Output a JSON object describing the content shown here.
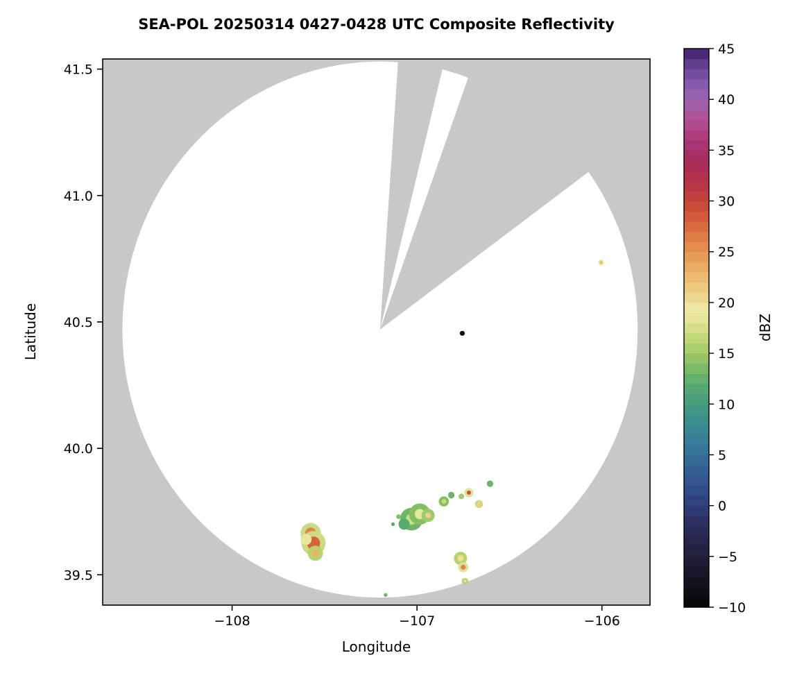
{
  "figure": {
    "title": "SEA-POL 20250314 0427-0428 UTC Composite Reflectivity",
    "xlabel": "Longitude",
    "ylabel": "Latitude",
    "colorbar_label": "dBZ"
  },
  "chart_data": {
    "type": "heatmap",
    "title": "SEA-POL 20250314 0427-0428 UTC Composite Reflectivity",
    "xlabel": "Longitude",
    "ylabel": "Latitude",
    "xlim": [
      -108.7,
      -105.74
    ],
    "ylim": [
      39.38,
      41.54
    ],
    "xticks": [
      -108,
      -107,
      -106
    ],
    "xtick_labels": [
      "−108",
      "−107",
      "−106"
    ],
    "yticks": [
      39.5,
      40.0,
      40.5,
      41.0,
      41.5
    ],
    "ytick_labels": [
      "39.5",
      "40.0",
      "40.5",
      "41.0",
      "41.5"
    ],
    "grid": false,
    "plot_background": "#ffffff",
    "outside_scan_color": "#c8c8c8",
    "scan_area_color": "#ffffff",
    "radar": {
      "center_lon": -107.2,
      "center_lat": 40.47,
      "range_lat_deg": 1.06,
      "blocked_sectors_az_deg": [
        [
          4,
          14
        ],
        [
          20,
          54
        ]
      ]
    },
    "colorbar": {
      "label": "dBZ",
      "min": -10,
      "max": 45,
      "ticks": [
        -10,
        -5,
        0,
        5,
        10,
        15,
        20,
        25,
        30,
        35,
        40,
        45
      ],
      "tick_labels": [
        "−10",
        "−5",
        "0",
        "5",
        "10",
        "15",
        "20",
        "25",
        "30",
        "35",
        "40",
        "45"
      ],
      "stops": [
        [
          -10,
          "#050505"
        ],
        [
          -6,
          "#1d1a2e"
        ],
        [
          -2,
          "#2c2d5e"
        ],
        [
          2,
          "#32508e"
        ],
        [
          6,
          "#37799c"
        ],
        [
          9,
          "#3d9489"
        ],
        [
          12,
          "#58ab6f"
        ],
        [
          14,
          "#86bf63"
        ],
        [
          16,
          "#b5d36e"
        ],
        [
          18,
          "#dfe393"
        ],
        [
          19.5,
          "#ede9a4"
        ],
        [
          21,
          "#eed088"
        ],
        [
          23,
          "#ebb368"
        ],
        [
          25,
          "#e69552"
        ],
        [
          27,
          "#dd7342"
        ],
        [
          29,
          "#d05038"
        ],
        [
          31,
          "#bd3a40"
        ],
        [
          33,
          "#ac2d52"
        ],
        [
          35,
          "#a52e68"
        ],
        [
          37,
          "#b04487"
        ],
        [
          38.5,
          "#ad559c"
        ],
        [
          40,
          "#9c64b0"
        ],
        [
          42,
          "#7e55a9"
        ],
        [
          44,
          "#573584"
        ],
        [
          45,
          "#3d1d63"
        ]
      ]
    },
    "echoes": [
      {
        "lon": -107.575,
        "lat": 39.665,
        "r": 0.04,
        "dbz": 17,
        "core_dbz": 26,
        "core_r": 0.022
      },
      {
        "lon": -107.56,
        "lat": 39.625,
        "r": 0.048,
        "dbz": 17,
        "core_dbz": 28,
        "core_r": 0.026
      },
      {
        "lon": -107.55,
        "lat": 39.585,
        "r": 0.03,
        "dbz": 16,
        "core_dbz": 23,
        "core_r": 0.015
      },
      {
        "lon": -107.6,
        "lat": 39.64,
        "r": 0.022,
        "dbz": 19
      },
      {
        "lon": -107.03,
        "lat": 39.72,
        "r": 0.045,
        "dbz": 13,
        "core_dbz": 17,
        "core_r": 0.022
      },
      {
        "lon": -106.985,
        "lat": 39.74,
        "r": 0.042,
        "dbz": 14,
        "core_dbz": 19,
        "core_r": 0.02
      },
      {
        "lon": -106.94,
        "lat": 39.735,
        "r": 0.026,
        "dbz": 15,
        "core_dbz": 21,
        "core_r": 0.011
      },
      {
        "lon": -107.07,
        "lat": 39.7,
        "r": 0.022,
        "dbz": 12
      },
      {
        "lon": -107.1,
        "lat": 39.73,
        "r": 0.009,
        "dbz": 14
      },
      {
        "lon": -107.13,
        "lat": 39.7,
        "r": 0.007,
        "dbz": 12
      },
      {
        "lon": -106.855,
        "lat": 39.79,
        "r": 0.02,
        "dbz": 14,
        "core_dbz": 17,
        "core_r": 0.009
      },
      {
        "lon": -106.815,
        "lat": 39.815,
        "r": 0.013,
        "dbz": 13
      },
      {
        "lon": -106.72,
        "lat": 39.825,
        "r": 0.018,
        "dbz": 18,
        "core_dbz": 30,
        "core_r": 0.008
      },
      {
        "lon": -106.76,
        "lat": 39.81,
        "r": 0.011,
        "dbz": 15
      },
      {
        "lon": -106.665,
        "lat": 39.78,
        "r": 0.016,
        "dbz": 17,
        "core_dbz": 21,
        "core_r": 0.007
      },
      {
        "lon": -106.605,
        "lat": 39.86,
        "r": 0.013,
        "dbz": 13
      },
      {
        "lon": -106.765,
        "lat": 39.565,
        "r": 0.026,
        "dbz": 16,
        "core_dbz": 20,
        "core_r": 0.012
      },
      {
        "lon": -106.75,
        "lat": 39.53,
        "r": 0.02,
        "dbz": 18,
        "core_dbz": 26,
        "core_r": 0.01
      },
      {
        "lon": -106.74,
        "lat": 39.475,
        "r": 0.013,
        "dbz": 16,
        "core_dbz": 19,
        "core_r": 0.005
      },
      {
        "lon": -106.005,
        "lat": 40.735,
        "r": 0.011,
        "dbz": 19,
        "core_dbz": 23,
        "core_r": 0.005
      },
      {
        "lon": -106.755,
        "lat": 40.455,
        "r": 0.01,
        "dbz": -9
      },
      {
        "lon": -107.17,
        "lat": 39.42,
        "r": 0.007,
        "dbz": 13
      }
    ]
  }
}
